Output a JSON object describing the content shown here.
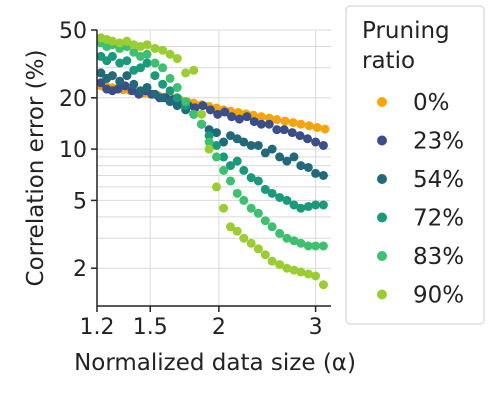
{
  "chart_data": {
    "type": "scatter",
    "title": "",
    "xlabel": "Normalized data size (α)",
    "ylabel": "Correlation error (%)",
    "x_scale": "log",
    "y_scale": "log",
    "xlim": [
      1.2,
      3.2
    ],
    "ylim": [
      1.2,
      50
    ],
    "x_ticks": [
      1.2,
      1.5,
      2,
      3
    ],
    "x_tick_labels": [
      "1.2",
      "1.5",
      "2",
      "3"
    ],
    "y_ticks": [
      2,
      5,
      10,
      20,
      50
    ],
    "y_tick_labels": [
      "2",
      "5",
      "10",
      "20",
      "50"
    ],
    "grid": true,
    "legend": {
      "title": "Pruning ratio",
      "position": "right",
      "entries": [
        "0%",
        "23%",
        "54%",
        "72%",
        "83%",
        "90%"
      ]
    },
    "series": [
      {
        "name": "0%",
        "color": "#f5a50a",
        "points": [
          [
            1.22,
            23.5
          ],
          [
            1.25,
            23.2
          ],
          [
            1.28,
            22.9
          ],
          [
            1.31,
            22.6
          ],
          [
            1.34,
            22.3
          ],
          [
            1.38,
            22.0
          ],
          [
            1.42,
            21.6
          ],
          [
            1.46,
            21.3
          ],
          [
            1.5,
            21.0
          ],
          [
            1.55,
            20.6
          ],
          [
            1.6,
            20.2
          ],
          [
            1.65,
            19.8
          ],
          [
            1.7,
            19.4
          ],
          [
            1.75,
            19.0
          ],
          [
            1.8,
            18.6
          ],
          [
            1.86,
            18.2
          ],
          [
            1.92,
            17.8
          ],
          [
            1.98,
            17.4
          ],
          [
            2.04,
            17.0
          ],
          [
            2.1,
            16.7
          ],
          [
            2.17,
            16.4
          ],
          [
            2.24,
            16.1
          ],
          [
            2.31,
            15.8
          ],
          [
            2.39,
            15.5
          ],
          [
            2.47,
            15.2
          ],
          [
            2.55,
            14.9
          ],
          [
            2.64,
            14.6
          ],
          [
            2.73,
            14.3
          ],
          [
            2.82,
            14.0
          ],
          [
            2.92,
            13.7
          ],
          [
            3.02,
            13.4
          ],
          [
            3.12,
            13.1
          ]
        ]
      },
      {
        "name": "23%",
        "color": "#3b4e88",
        "points": [
          [
            1.22,
            24.5
          ],
          [
            1.25,
            22.5
          ],
          [
            1.28,
            22.0
          ],
          [
            1.31,
            22.5
          ],
          [
            1.35,
            23.5
          ],
          [
            1.39,
            22.0
          ],
          [
            1.43,
            21.0
          ],
          [
            1.47,
            22.0
          ],
          [
            1.51,
            21.0
          ],
          [
            1.56,
            20.0
          ],
          [
            1.6,
            20.0
          ],
          [
            1.65,
            19.5
          ],
          [
            1.7,
            18.5
          ],
          [
            1.76,
            18.0
          ],
          [
            1.81,
            17.5
          ],
          [
            1.87,
            18.0
          ],
          [
            1.93,
            17.0
          ],
          [
            1.99,
            16.0
          ],
          [
            2.05,
            16.5
          ],
          [
            2.11,
            15.5
          ],
          [
            2.18,
            15.0
          ],
          [
            2.25,
            15.5
          ],
          [
            2.32,
            14.5
          ],
          [
            2.39,
            14.0
          ],
          [
            2.47,
            14.0
          ],
          [
            2.55,
            13.0
          ],
          [
            2.63,
            13.0
          ],
          [
            2.72,
            12.5
          ],
          [
            2.81,
            12.0
          ],
          [
            2.9,
            11.5
          ],
          [
            3.0,
            11.0
          ],
          [
            3.1,
            10.5
          ]
        ]
      },
      {
        "name": "54%",
        "color": "#22697a",
        "points": [
          [
            1.22,
            28.0
          ],
          [
            1.25,
            26.0
          ],
          [
            1.28,
            27.0
          ],
          [
            1.32,
            25.0
          ],
          [
            1.36,
            27.0
          ],
          [
            1.4,
            24.0
          ],
          [
            1.44,
            22.0
          ],
          [
            1.48,
            23.0
          ],
          [
            1.53,
            21.0
          ],
          [
            1.58,
            20.0
          ],
          [
            1.63,
            19.0
          ],
          [
            1.68,
            18.0
          ],
          [
            1.74,
            17.0
          ],
          [
            1.8,
            16.0
          ],
          [
            1.86,
            14.0
          ],
          [
            1.92,
            13.0
          ],
          [
            1.98,
            12.5
          ],
          [
            2.04,
            11.0
          ],
          [
            2.1,
            12.0
          ],
          [
            2.16,
            11.5
          ],
          [
            2.22,
            11.0
          ],
          [
            2.29,
            10.5
          ],
          [
            2.36,
            10.5
          ],
          [
            2.43,
            9.5
          ],
          [
            2.5,
            10.0
          ],
          [
            2.58,
            9.0
          ],
          [
            2.66,
            8.5
          ],
          [
            2.74,
            9.0
          ],
          [
            2.82,
            8.0
          ],
          [
            2.91,
            7.8
          ],
          [
            3.0,
            7.2
          ],
          [
            3.1,
            7.0
          ]
        ]
      },
      {
        "name": "72%",
        "color": "#1a9a7a",
        "points": [
          [
            1.22,
            35.0
          ],
          [
            1.25,
            33.0
          ],
          [
            1.28,
            35.0
          ],
          [
            1.32,
            32.0
          ],
          [
            1.36,
            33.0
          ],
          [
            1.4,
            29.0
          ],
          [
            1.44,
            30.0
          ],
          [
            1.48,
            32.0
          ],
          [
            1.53,
            27.0
          ],
          [
            1.58,
            24.0
          ],
          [
            1.63,
            22.0
          ],
          [
            1.68,
            20.0
          ],
          [
            1.74,
            18.0
          ],
          [
            1.8,
            16.0
          ],
          [
            1.86,
            14.0
          ],
          [
            1.92,
            12.0
          ],
          [
            1.98,
            10.5
          ],
          [
            2.04,
            9.0
          ],
          [
            2.1,
            8.0
          ],
          [
            2.16,
            8.5
          ],
          [
            2.22,
            7.5
          ],
          [
            2.29,
            6.8
          ],
          [
            2.36,
            6.5
          ],
          [
            2.43,
            5.8
          ],
          [
            2.5,
            5.5
          ],
          [
            2.58,
            5.2
          ],
          [
            2.66,
            5.0
          ],
          [
            2.74,
            4.7
          ],
          [
            2.82,
            4.5
          ],
          [
            2.91,
            4.6
          ],
          [
            3.0,
            4.7
          ],
          [
            3.1,
            4.7
          ]
        ]
      },
      {
        "name": "83%",
        "color": "#3fbf70",
        "points": [
          [
            1.22,
            42.0
          ],
          [
            1.25,
            40.0
          ],
          [
            1.28,
            41.0
          ],
          [
            1.32,
            39.0
          ],
          [
            1.36,
            40.0
          ],
          [
            1.4,
            37.0
          ],
          [
            1.44,
            35.0
          ],
          [
            1.48,
            36.0
          ],
          [
            1.53,
            32.0
          ],
          [
            1.58,
            30.0
          ],
          [
            1.63,
            26.0
          ],
          [
            1.68,
            23.0
          ],
          [
            1.74,
            19.0
          ],
          [
            1.8,
            16.0
          ],
          [
            1.86,
            14.0
          ],
          [
            1.92,
            11.0
          ],
          [
            1.98,
            9.0
          ],
          [
            2.04,
            7.5
          ],
          [
            2.1,
            6.5
          ],
          [
            2.16,
            5.5
          ],
          [
            2.22,
            5.0
          ],
          [
            2.29,
            4.5
          ],
          [
            2.36,
            4.2
          ],
          [
            2.43,
            3.8
          ],
          [
            2.5,
            3.5
          ],
          [
            2.58,
            3.2
          ],
          [
            2.66,
            3.0
          ],
          [
            2.74,
            2.9
          ],
          [
            2.82,
            2.8
          ],
          [
            2.91,
            2.7
          ],
          [
            3.0,
            2.7
          ],
          [
            3.1,
            2.7
          ]
        ]
      },
      {
        "name": "90%",
        "color": "#9acd32",
        "points": [
          [
            1.22,
            45.0
          ],
          [
            1.25,
            44.0
          ],
          [
            1.28,
            43.0
          ],
          [
            1.32,
            42.0
          ],
          [
            1.36,
            43.0
          ],
          [
            1.4,
            41.0
          ],
          [
            1.44,
            40.0
          ],
          [
            1.48,
            41.0
          ],
          [
            1.53,
            39.0
          ],
          [
            1.58,
            38.0
          ],
          [
            1.63,
            36.0
          ],
          [
            1.68,
            34.0
          ],
          [
            1.74,
            28.0
          ],
          [
            1.8,
            29.0
          ],
          [
            1.86,
            16.0
          ],
          [
            1.92,
            10.0
          ],
          [
            1.98,
            6.0
          ],
          [
            2.04,
            4.5
          ],
          [
            2.1,
            3.5
          ],
          [
            2.16,
            3.3
          ],
          [
            2.22,
            3.0
          ],
          [
            2.29,
            2.8
          ],
          [
            2.36,
            2.6
          ],
          [
            2.43,
            2.4
          ],
          [
            2.5,
            2.2
          ],
          [
            2.58,
            2.1
          ],
          [
            2.66,
            2.0
          ],
          [
            2.74,
            1.95
          ],
          [
            2.82,
            1.9
          ],
          [
            2.91,
            1.85
          ],
          [
            3.0,
            1.8
          ],
          [
            3.1,
            1.6
          ]
        ]
      }
    ]
  }
}
